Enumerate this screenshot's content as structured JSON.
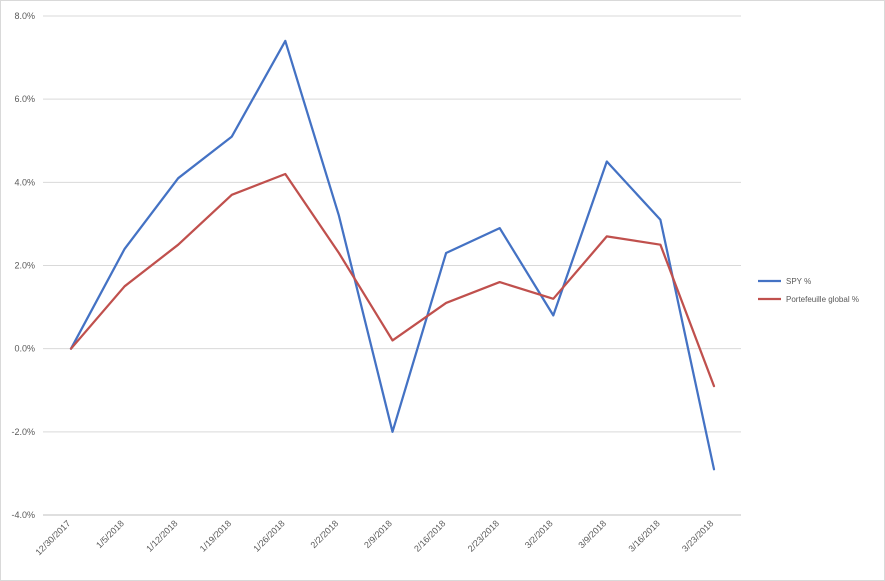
{
  "chart_data": {
    "type": "line",
    "title": "",
    "xlabel": "",
    "ylabel": "",
    "categories": [
      "12/30/2017",
      "1/5/2018",
      "1/12/2018",
      "1/19/2018",
      "1/26/2018",
      "2/2/2018",
      "2/9/2018",
      "2/16/2018",
      "2/23/2018",
      "3/2/2018",
      "3/9/2018",
      "3/16/2018",
      "3/23/2018"
    ],
    "y_ticks": [
      "8.0%",
      "6.0%",
      "4.0%",
      "2.0%",
      "0.0%",
      "-2.0%",
      "-4.0%"
    ],
    "ylim": [
      -4.0,
      8.0
    ],
    "grid": true,
    "legend_position": "right",
    "series": [
      {
        "name": "SPY %",
        "color": "#4472c4",
        "values": [
          0.0,
          2.4,
          4.1,
          5.1,
          7.4,
          3.2,
          -2.0,
          2.3,
          2.9,
          0.8,
          4.5,
          3.1,
          -2.9
        ]
      },
      {
        "name": "Portefeuille global %",
        "color": "#c0504d",
        "values": [
          0.0,
          1.5,
          2.5,
          3.7,
          4.2,
          2.3,
          0.2,
          1.1,
          1.6,
          1.2,
          2.7,
          2.5,
          -0.9
        ]
      }
    ]
  }
}
